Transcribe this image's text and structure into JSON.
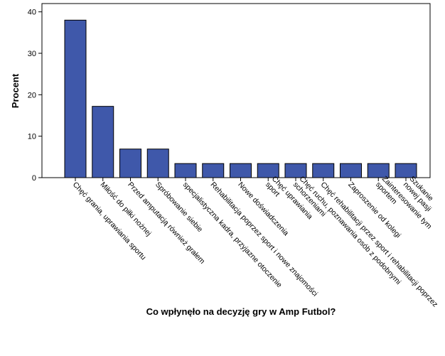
{
  "chart_data": {
    "type": "bar",
    "xlabel": "Co wpłynęło na decyzję gry w Amp Futbol?",
    "ylabel": "Procent",
    "ylim": [
      0,
      42
    ],
    "yticks": [
      0,
      10,
      20,
      30,
      40
    ],
    "grid": false,
    "bar_color": "#3f58aa",
    "categories": [
      [
        "Chęć grania, uprawiania sportu"
      ],
      [
        "Miłość do piłki nożnej"
      ],
      [
        "Przed amputacją również grałem"
      ],
      [
        "Spróbowanie siebie"
      ],
      [
        "specjalistyczna kadra, przyjazne otoczenie"
      ],
      [
        "Rehabilitacja poprzez sport i nowe znajomości"
      ],
      [
        "Nowe doświadczenia"
      ],
      [
        "Chęć uprawiania",
        "sport"
      ],
      [
        "Chęć ruchu, poznawania osób z podobnymi",
        "schorzeniami"
      ],
      [
        "Chęć rehabilitacji przez sport i rehabilitacji poprzez"
      ],
      [
        "Zaproszenie od kolegi"
      ],
      [
        "Zainteresowanie tym",
        "sportem"
      ],
      [
        "Szukanie",
        "nowej pasji"
      ]
    ],
    "values": [
      38.0,
      17.2,
      6.9,
      6.9,
      3.4,
      3.4,
      3.4,
      3.4,
      3.4,
      3.4,
      3.4,
      3.4,
      3.4
    ]
  }
}
